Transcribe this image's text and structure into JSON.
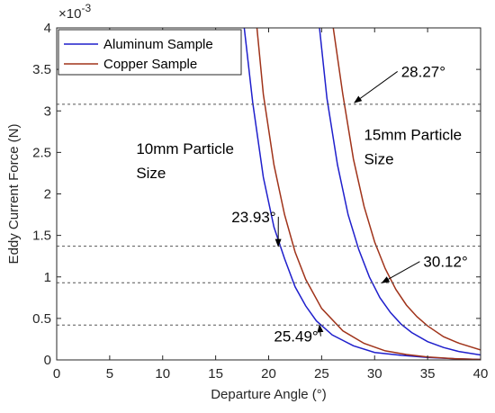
{
  "chart_data": {
    "type": "line",
    "xlabel": "Departure Angle (°)",
    "ylabel": "Eddy Current Force (N)",
    "exponent_label": "×10",
    "exponent_power": "-3",
    "xlim": [
      0,
      40
    ],
    "ylim": [
      0,
      4
    ],
    "xticks": [
      0,
      5,
      10,
      15,
      20,
      25,
      30,
      35,
      40
    ],
    "yticks": [
      0,
      0.5,
      1,
      1.5,
      2,
      2.5,
      3,
      3.5,
      4
    ],
    "xtick_labels": [
      "0",
      "5",
      "10",
      "15",
      "20",
      "25",
      "30",
      "35",
      "40"
    ],
    "ytick_labels": [
      "0",
      "0.5",
      "1",
      "1.5",
      "2",
      "2.5",
      "3",
      "3.5",
      "4"
    ],
    "grid": false,
    "legend_position": "top-left",
    "legend": [
      "Aluminum Sample",
      "Copper Sample"
    ],
    "colors": {
      "aluminum": "#1f1fcc",
      "copper": "#a0331a",
      "reference": "#555555"
    },
    "series": [
      {
        "name": "Aluminum Sample",
        "group": "10mm Particle Size",
        "color": "#1f1fcc",
        "x": [
          17.7,
          18.5,
          19.5,
          20.5,
          21.5,
          22.5,
          23.5,
          24.5,
          26,
          28,
          30,
          32.5,
          35,
          37.5,
          40
        ],
        "y": [
          4.0,
          3.1,
          2.2,
          1.6,
          1.22,
          0.88,
          0.65,
          0.47,
          0.3,
          0.17,
          0.09,
          0.055,
          0.03,
          0.015,
          0.005
        ]
      },
      {
        "name": "Copper Sample",
        "group": "10mm Particle Size",
        "color": "#a0331a",
        "x": [
          18.9,
          19.5,
          20.5,
          21.5,
          22.5,
          23.5,
          25,
          27,
          29,
          31,
          33,
          35,
          37.5,
          40
        ],
        "y": [
          4.0,
          3.2,
          2.35,
          1.75,
          1.3,
          0.97,
          0.62,
          0.35,
          0.2,
          0.11,
          0.065,
          0.035,
          0.015,
          0.005
        ]
      },
      {
        "name": "Aluminum Sample",
        "group": "15mm Particle Size",
        "color": "#1f1fcc",
        "x": [
          24.8,
          25.5,
          26.5,
          27.5,
          28.5,
          29.5,
          30.5,
          31.5,
          32.5,
          33.5,
          35,
          36.5,
          38,
          40
        ],
        "y": [
          4.0,
          3.15,
          2.35,
          1.75,
          1.33,
          1.0,
          0.75,
          0.57,
          0.43,
          0.33,
          0.22,
          0.15,
          0.1,
          0.06
        ]
      },
      {
        "name": "Copper Sample",
        "group": "15mm Particle Size",
        "color": "#a0331a",
        "x": [
          26.1,
          27,
          28,
          29,
          30,
          31,
          32,
          33,
          34,
          35,
          36.5,
          38,
          40
        ],
        "y": [
          4.0,
          3.2,
          2.42,
          1.85,
          1.42,
          1.1,
          0.85,
          0.66,
          0.52,
          0.41,
          0.28,
          0.2,
          0.12
        ]
      }
    ],
    "reference_lines": [
      3.08,
      1.37,
      0.93,
      0.42
    ],
    "annotations": [
      {
        "text": "28.27°",
        "target": [
          28.1,
          3.1
        ],
        "label_at": [
          32.5,
          3.41
        ]
      },
      {
        "text": "23.93°",
        "target": [
          20.9,
          1.37
        ],
        "label_at": [
          16.5,
          1.66
        ]
      },
      {
        "text": "30.12°",
        "target": [
          30.7,
          0.93
        ],
        "label_at": [
          34.6,
          1.12
        ]
      },
      {
        "text": "25.49°",
        "target": [
          24.8,
          0.42
        ],
        "label_at": [
          20.5,
          0.22
        ]
      }
    ],
    "group_labels": [
      {
        "lines": [
          "10mm Particle",
          "Size"
        ],
        "at": [
          7.5,
          2.48
        ]
      },
      {
        "lines": [
          "15mm Particle",
          "Size"
        ],
        "at": [
          29,
          2.65
        ]
      }
    ]
  }
}
